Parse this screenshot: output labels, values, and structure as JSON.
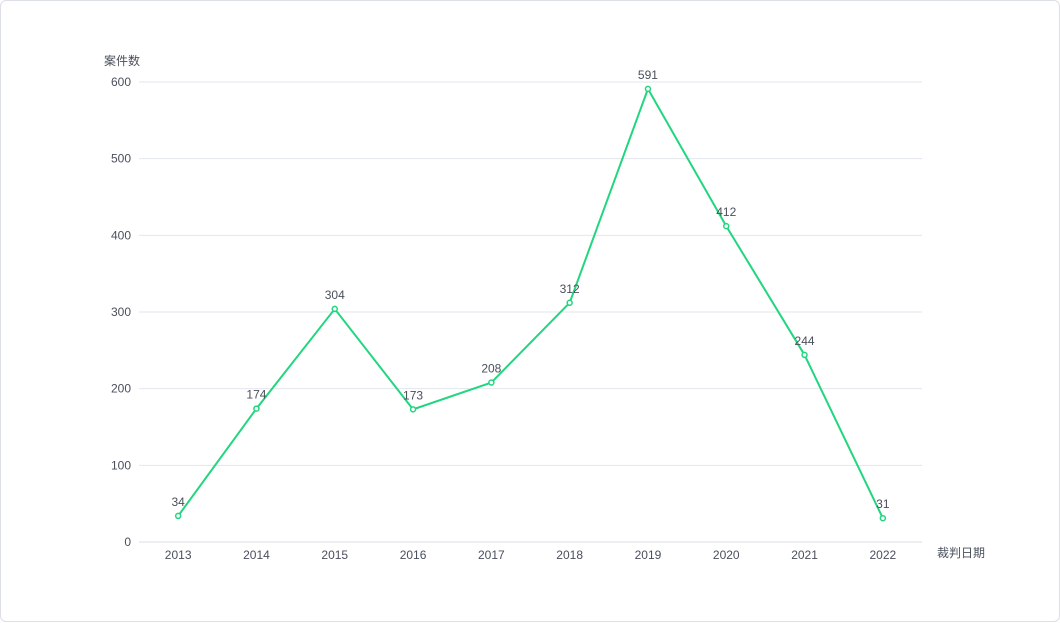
{
  "chart_data": {
    "type": "line",
    "ylabel": "案件数",
    "xlabel": "裁判日期",
    "categories": [
      "2013",
      "2014",
      "2015",
      "2016",
      "2017",
      "2018",
      "2019",
      "2020",
      "2021",
      "2022"
    ],
    "values": [
      34,
      174,
      304,
      173,
      208,
      312,
      591,
      412,
      244,
      31
    ],
    "ylim": [
      0,
      600
    ],
    "yticks": [
      0,
      100,
      200,
      300,
      400,
      500,
      600
    ],
    "grid": true,
    "data_labels": true,
    "line_color": "#22d67f"
  }
}
